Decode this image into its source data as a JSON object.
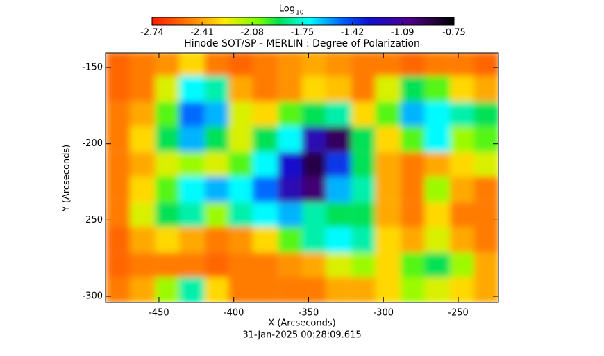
{
  "chart_data": {
    "type": "heatmap",
    "title": "Hinode SOT/SP - MERLIN : Degree of Polarization",
    "colorbar_label": "Log",
    "colorbar_label_sub": "10",
    "x_label": "X (Arcseconds)",
    "y_label": "Y (Arcseconds)",
    "timestamp": "31-Jan-2025 00:28:09.615",
    "xlim": [
      -485.7,
      -223.1
    ],
    "ylim": [
      -304.1,
      -140.4
    ],
    "xticks": [
      -450,
      -400,
      -350,
      -300,
      -250
    ],
    "yticks": [
      -150,
      -200,
      -250,
      -300
    ],
    "clim": [
      -2.74,
      -0.75
    ],
    "cticks": [
      -2.74,
      -2.41,
      -2.08,
      -1.75,
      -1.42,
      -1.09,
      -0.75
    ],
    "x": [
      -477,
      -461,
      -444,
      -428,
      -411,
      -395,
      -379,
      -362,
      -346,
      -330,
      -313,
      -297,
      -280,
      -264,
      -247,
      -231
    ],
    "y": [
      -148,
      -164,
      -181,
      -197,
      -214,
      -230,
      -247,
      -263,
      -280,
      -296
    ],
    "values": [
      [
        -2.55,
        -2.5,
        -2.45,
        -2.3,
        -2.5,
        -2.55,
        -2.5,
        -2.45,
        -2.4,
        -2.45,
        -2.5,
        -2.5,
        -2.55,
        -2.5,
        -2.5,
        -2.55
      ],
      [
        -2.55,
        -2.5,
        -2.2,
        -1.7,
        -1.8,
        -2.4,
        -2.5,
        -2.45,
        -2.3,
        -2.35,
        -2.5,
        -2.2,
        -1.9,
        -2.0,
        -2.3,
        -2.4
      ],
      [
        -2.5,
        -2.4,
        -2.0,
        -1.5,
        -1.6,
        -2.2,
        -2.3,
        -2.0,
        -1.9,
        -1.8,
        -2.3,
        -2.0,
        -1.6,
        -1.7,
        -1.8,
        -1.9
      ],
      [
        -2.5,
        -2.3,
        -1.9,
        -1.6,
        -1.9,
        -2.2,
        -1.9,
        -1.7,
        -1.2,
        -0.95,
        -1.9,
        -2.3,
        -2.0,
        -1.7,
        -2.1,
        -2.0
      ],
      [
        -2.5,
        -2.4,
        -2.2,
        -2.1,
        -2.2,
        -2.0,
        -1.7,
        -1.3,
        -0.9,
        -1.4,
        -1.9,
        -2.4,
        -2.5,
        -2.4,
        -2.3,
        -2.2
      ],
      [
        -2.5,
        -2.3,
        -2.0,
        -1.7,
        -1.6,
        -1.7,
        -1.5,
        -1.2,
        -1.0,
        -1.6,
        -1.8,
        -2.4,
        -2.5,
        -2.1,
        -2.4,
        -2.5
      ],
      [
        -2.5,
        -2.2,
        -1.9,
        -1.8,
        -2.1,
        -1.8,
        -1.7,
        -1.6,
        -1.8,
        -1.9,
        -1.9,
        -2.4,
        -2.5,
        -2.3,
        -2.5,
        -2.5
      ],
      [
        -2.55,
        -2.4,
        -2.3,
        -2.4,
        -2.5,
        -2.45,
        -2.3,
        -2.0,
        -1.8,
        -1.7,
        -1.8,
        -2.3,
        -2.4,
        -2.2,
        -2.4,
        -2.5
      ],
      [
        -2.55,
        -2.5,
        -2.5,
        -2.5,
        -2.55,
        -2.5,
        -2.5,
        -2.45,
        -2.4,
        -2.2,
        -2.1,
        -2.3,
        -2.0,
        -1.9,
        -2.1,
        -2.4
      ],
      [
        -2.5,
        -2.4,
        -2.1,
        -1.8,
        -2.3,
        -2.5,
        -2.5,
        -2.5,
        -2.5,
        -2.4,
        -2.4,
        -2.3,
        -2.1,
        -2.2,
        -2.3,
        -2.4
      ]
    ]
  }
}
